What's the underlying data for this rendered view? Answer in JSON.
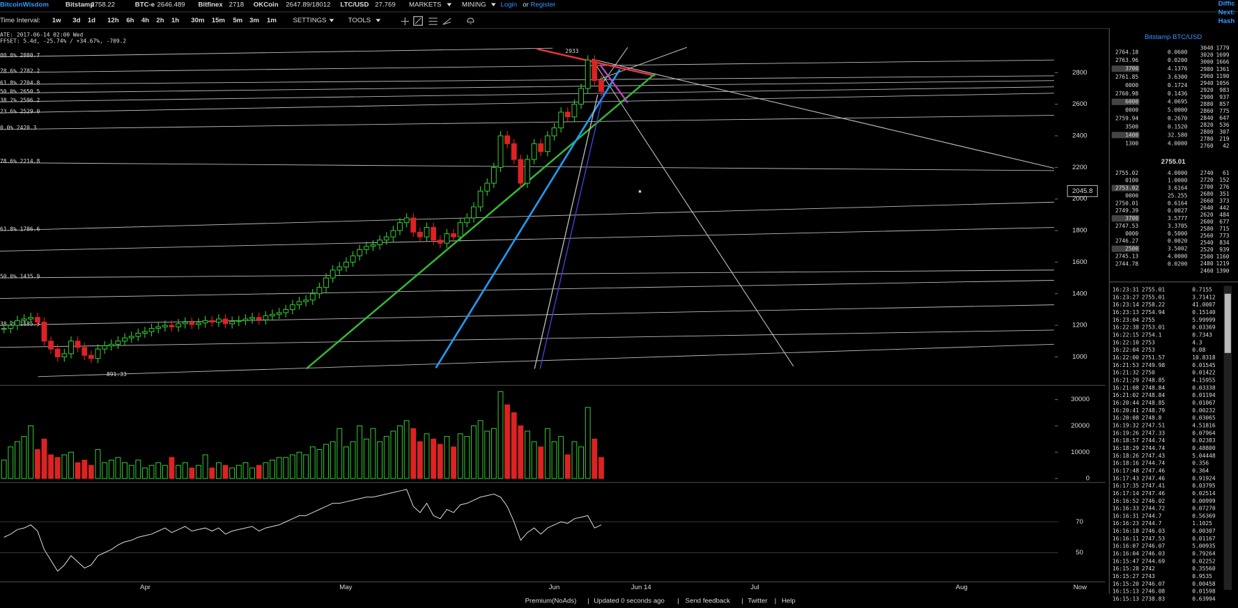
{
  "top_bar": {
    "brand": "BitcoinWisdom",
    "tickers": [
      {
        "name": "Bitstamp",
        "price": "2758.22"
      },
      {
        "name": "BTC-e",
        "price": "2646.489"
      },
      {
        "name": "Bitfinex",
        "price": "2718"
      },
      {
        "name": "OKCoin",
        "price": "2647.89/18012"
      },
      {
        "name": "LTC/USD",
        "price": "27.769"
      }
    ],
    "menus": [
      "MARKETS",
      "MINING"
    ],
    "login": "Login",
    "or": "or",
    "register": "Register",
    "cut_right": [
      "Diffic",
      "Next:",
      "Hash"
    ]
  },
  "toolbar": {
    "label": "Time Interval:",
    "intervals": [
      "1w",
      "3d",
      "1d",
      "12h",
      "6h",
      "4h",
      "2h",
      "1h",
      "30m",
      "15m",
      "5m",
      "3m",
      "1m"
    ],
    "active_index": 2,
    "menus": [
      "SETTINGS",
      "TOOLS"
    ]
  },
  "chart_data": {
    "type": "candlestick",
    "info": [
      "ATE: 2017-06-14 02:00 Wed",
      "FFSET: 5.4d, -25.74% / +34.67%, -709.2"
    ],
    "fib_labels": [
      "00.0% 2880.7",
      "78.6% 2782.2",
      "61.8% 2704.8",
      "50.0% 2650.5",
      "38.2% 2596.2",
      "23.6% 2529.0",
      "0.0% 2420.3",
      "78.6% 2214.8",
      "61.8% 1786.6",
      "50.0% 1435.9",
      "38.2% 1185.3"
    ],
    "annotations": {
      "high": "2933",
      "low": "891.33",
      "cursor_price": "2045.8"
    },
    "xlabels": [
      "Apr",
      "May",
      "Jun",
      "Jun 14",
      "Jul",
      "Aug",
      "Now"
    ],
    "up_color": "#33cc33",
    "down_color": "#dd2222",
    "ylim": [
      825,
      3070
    ],
    "yticks": [
      1000,
      1200,
      1400,
      1600,
      1800,
      2000,
      2200,
      2400,
      2600,
      2800
    ],
    "closes": [
      1180,
      1200,
      1230,
      1240,
      1250,
      1220,
      1100,
      1050,
      1000,
      1020,
      1100,
      1060,
      1010,
      990,
      1050,
      1070,
      1080,
      1100,
      1120,
      1130,
      1150,
      1160,
      1180,
      1190,
      1200,
      1190,
      1210,
      1220,
      1205,
      1215,
      1230,
      1220,
      1240,
      1210,
      1225,
      1230,
      1240,
      1250,
      1235,
      1260,
      1270,
      1280,
      1300,
      1330,
      1350,
      1360,
      1400,
      1440,
      1500,
      1550,
      1570,
      1600,
      1640,
      1680,
      1700,
      1710,
      1740,
      1760,
      1800,
      1850,
      1880,
      1790,
      1760,
      1820,
      1740,
      1720,
      1780,
      1760,
      1850,
      1880,
      1950,
      2050,
      2100,
      2200,
      2400,
      2350,
      2250,
      2100,
      2250,
      2350,
      2300,
      2400,
      2450,
      2550,
      2520,
      2600,
      2700,
      2880,
      2750,
      2680
    ],
    "volume": {
      "ylim": [
        0,
        34800
      ],
      "yticks": [
        0,
        10000,
        20000,
        30000
      ],
      "values": [
        7000,
        12000,
        14000,
        16000,
        20000,
        11000,
        15000,
        9000,
        8000,
        9000,
        10000,
        6000,
        7000,
        5000,
        11000,
        6000,
        7000,
        8000,
        6000,
        5000,
        7000,
        4000,
        5000,
        6000,
        5000,
        8000,
        5000,
        6000,
        4000,
        5000,
        9000,
        4000,
        6000,
        5000,
        4000,
        5000,
        6000,
        4000,
        5000,
        6000,
        7000,
        8000,
        8000,
        9000,
        10000,
        9000,
        12000,
        11000,
        13000,
        14000,
        19000,
        12000,
        14000,
        20000,
        15000,
        19000,
        14000,
        16000,
        18000,
        20000,
        22000,
        19000,
        14000,
        17000,
        15000,
        13000,
        16000,
        12000,
        17000,
        16000,
        20000,
        22000,
        18000,
        19000,
        33000,
        28000,
        25000,
        20000,
        18000,
        14000,
        12000,
        19000,
        14000,
        16000,
        9000,
        14000,
        12000,
        27000,
        15000,
        8000
      ]
    },
    "indicator": {
      "color": "#dddddd",
      "ylim": [
        31,
        95
      ],
      "yticks": [
        50,
        70
      ],
      "values": [
        60,
        62,
        65,
        66,
        68,
        64,
        52,
        45,
        38,
        42,
        48,
        44,
        40,
        42,
        48,
        50,
        52,
        55,
        57,
        58,
        60,
        61,
        62,
        64,
        66,
        63,
        65,
        67,
        64,
        65,
        66,
        64,
        66,
        62,
        64,
        65,
        66,
        67,
        64,
        66,
        67,
        68,
        70,
        72,
        74,
        74,
        76,
        78,
        80,
        82,
        82,
        83,
        84,
        85,
        86,
        86,
        87,
        88,
        89,
        90,
        91,
        80,
        76,
        82,
        74,
        72,
        78,
        76,
        81,
        82,
        84,
        86,
        87,
        88,
        86,
        80,
        70,
        58,
        63,
        66,
        62,
        66,
        68,
        70,
        69,
        72,
        73,
        74,
        66,
        68
      ]
    }
  },
  "order_book": {
    "title": "Bitstamp BTC/USD",
    "last_price": "2755.01",
    "asks_left": [
      [
        "2764.18",
        "0.0600"
      ],
      [
        "2763.96",
        "0.0200"
      ],
      [
        "3700",
        "4.1376"
      ],
      [
        "2761.85",
        "3.6300"
      ],
      [
        "0000",
        "0.1724"
      ],
      [
        "2760.98",
        "0.1436"
      ],
      [
        "6000",
        "4.0695"
      ],
      [
        "0000",
        "5.0000"
      ],
      [
        "2759.94",
        "0.2670"
      ],
      [
        "3500",
        "0.1520"
      ],
      [
        "1400",
        "32.580"
      ],
      [
        "1300",
        "4.0000"
      ]
    ],
    "asks_right": [
      [
        "3040",
        "1779"
      ],
      [
        "3020",
        "1699"
      ],
      [
        "3000",
        "1666"
      ],
      [
        "2980",
        "1361"
      ],
      [
        "2960",
        "1190"
      ],
      [
        "2940",
        "1056"
      ],
      [
        "2920",
        "983"
      ],
      [
        "2900",
        "937"
      ],
      [
        "2880",
        "857"
      ],
      [
        "2860",
        "775"
      ],
      [
        "2840",
        "647"
      ],
      [
        "2820",
        "536"
      ],
      [
        "2800",
        "307"
      ],
      [
        "2780",
        "219"
      ],
      [
        "2760",
        "42"
      ]
    ],
    "bids_left": [
      [
        "2755.02",
        "4.0000"
      ],
      [
        "0100",
        "1.0000"
      ],
      [
        "2753.02",
        "3.6164"
      ],
      [
        "0000",
        "25.255"
      ],
      [
        "2750.01",
        "0.6164"
      ],
      [
        "2749.39",
        "0.0027"
      ],
      [
        "3700",
        "3.5777"
      ],
      [
        "2747.53",
        "3.3705"
      ],
      [
        "0000",
        "0.5000"
      ],
      [
        "2746.27",
        "0.0020"
      ],
      [
        "2500",
        "3.5002"
      ],
      [
        "2745.13",
        "4.0000"
      ],
      [
        "2744.78",
        "0.0200"
      ]
    ],
    "bids_right": [
      [
        "2740",
        "61"
      ],
      [
        "2720",
        "152"
      ],
      [
        "2700",
        "276"
      ],
      [
        "2680",
        "351"
      ],
      [
        "2660",
        "373"
      ],
      [
        "2640",
        "442"
      ],
      [
        "2620",
        "484"
      ],
      [
        "2600",
        "677"
      ],
      [
        "2580",
        "715"
      ],
      [
        "2560",
        "773"
      ],
      [
        "2540",
        "834"
      ],
      [
        "2520",
        "939"
      ],
      [
        "2500",
        "1160"
      ],
      [
        "2480",
        "1219"
      ],
      [
        "2460",
        "1390"
      ]
    ]
  },
  "trades": {
    "buy_color": "#55dd55",
    "sell_color": "#ee3333",
    "rows": [
      {
        "time": "16:23:31",
        "price": "2755.01",
        "amount": "0.7155",
        "side": "buy"
      },
      {
        "time": "16:23:27",
        "price": "2755.01",
        "amount": "3.71412",
        "side": "buy"
      },
      {
        "time": "16:23:14",
        "price": "2758.22",
        "amount": "41.0007",
        "side": "buy"
      },
      {
        "time": "16:23:13",
        "price": "2754.94",
        "amount": "0.15140",
        "side": "buy"
      },
      {
        "time": "16:23:04",
        "price": "2755",
        "amount": "5.99999",
        "side": "buy"
      },
      {
        "time": "16:22:38",
        "price": "2753.01",
        "amount": "0.03369",
        "side": "sell"
      },
      {
        "time": "16:22:15",
        "price": "2754.1",
        "amount": "0.7343",
        "side": "buy"
      },
      {
        "time": "16:22:10",
        "price": "2753",
        "amount": "4.3",
        "side": "sell"
      },
      {
        "time": "16:22:04",
        "price": "2753",
        "amount": "0.08",
        "side": "buy"
      },
      {
        "time": "16:22:00",
        "price": "2751.57",
        "amount": "10.8318",
        "side": "buy"
      },
      {
        "time": "16:21:53",
        "price": "2749.98",
        "amount": "0.01545",
        "side": "buy"
      },
      {
        "time": "16:21:32",
        "price": "2750",
        "amount": "0.01422",
        "side": "buy"
      },
      {
        "time": "16:21:29",
        "price": "2748.85",
        "amount": "4.15955",
        "side": "buy"
      },
      {
        "time": "16:21:08",
        "price": "2748.84",
        "amount": "0.03338",
        "side": "buy"
      },
      {
        "time": "16:21:02",
        "price": "2748.84",
        "amount": "0.01194",
        "side": "buy"
      },
      {
        "time": "16:20:44",
        "price": "2748.85",
        "amount": "0.01067",
        "side": "buy"
      },
      {
        "time": "16:20:41",
        "price": "2748.79",
        "amount": "0.00232",
        "side": "buy"
      },
      {
        "time": "16:20:08",
        "price": "2748.8",
        "amount": "0.03065",
        "side": "buy"
      },
      {
        "time": "16:19:32",
        "price": "2747.51",
        "amount": "4.51816",
        "side": "buy"
      },
      {
        "time": "16:19:26",
        "price": "2747.33",
        "amount": "0.07964",
        "side": "buy"
      },
      {
        "time": "16:18:57",
        "price": "2744.74",
        "amount": "0.02383",
        "side": "sell"
      },
      {
        "time": "16:18:29",
        "price": "2744.74",
        "amount": "0.48800",
        "side": "sell"
      },
      {
        "time": "16:18:26",
        "price": "2747.43",
        "amount": "5.04448",
        "side": "buy"
      },
      {
        "time": "16:18:16",
        "price": "2744.74",
        "amount": "0.356",
        "side": "sell"
      },
      {
        "time": "16:17:48",
        "price": "2747.46",
        "amount": "0.364",
        "side": "buy"
      },
      {
        "time": "16:17:43",
        "price": "2747.46",
        "amount": "0.91924",
        "side": "buy"
      },
      {
        "time": "16:17:35",
        "price": "2747.41",
        "amount": "0.03795",
        "side": "buy"
      },
      {
        "time": "16:17:14",
        "price": "2747.46",
        "amount": "0.02514",
        "side": "buy"
      },
      {
        "time": "16:16:52",
        "price": "2746.02",
        "amount": "0.00999",
        "side": "buy"
      },
      {
        "time": "16:16:33",
        "price": "2744.72",
        "amount": "0.07270",
        "side": "sell"
      },
      {
        "time": "16:16:31",
        "price": "2744.7",
        "amount": "0.56369",
        "side": "sell"
      },
      {
        "time": "16:16:23",
        "price": "2744.7",
        "amount": "1.1025",
        "side": "sell"
      },
      {
        "time": "16:16:18",
        "price": "2746.03",
        "amount": "0.00307",
        "side": "sell"
      },
      {
        "time": "16:16:11",
        "price": "2747.53",
        "amount": "0.01167",
        "side": "buy"
      },
      {
        "time": "16:16:07",
        "price": "2746.07",
        "amount": "5.00935",
        "side": "buy"
      },
      {
        "time": "16:16:04",
        "price": "2746.03",
        "amount": "0.79264",
        "side": "buy"
      },
      {
        "time": "16:15:47",
        "price": "2744.69",
        "amount": "0.02252",
        "side": "buy"
      },
      {
        "time": "16:15:28",
        "price": "2742",
        "amount": "0.35560",
        "side": "sell"
      },
      {
        "time": "16:15:27",
        "price": "2743",
        "amount": "0.9535",
        "side": "buy"
      },
      {
        "time": "16:15:20",
        "price": "2746.07",
        "amount": "0.00458",
        "side": "sell"
      },
      {
        "time": "16:15:13",
        "price": "2746.08",
        "amount": "0.01598",
        "side": "buy"
      },
      {
        "time": "16:15:13",
        "price": "2738.83",
        "amount": "0.63994",
        "side": "sell"
      }
    ]
  },
  "footer": [
    "Premium(NoAds)",
    "Updated 0 seconds ago",
    "Send feedback",
    "Twitter",
    "Help"
  ]
}
